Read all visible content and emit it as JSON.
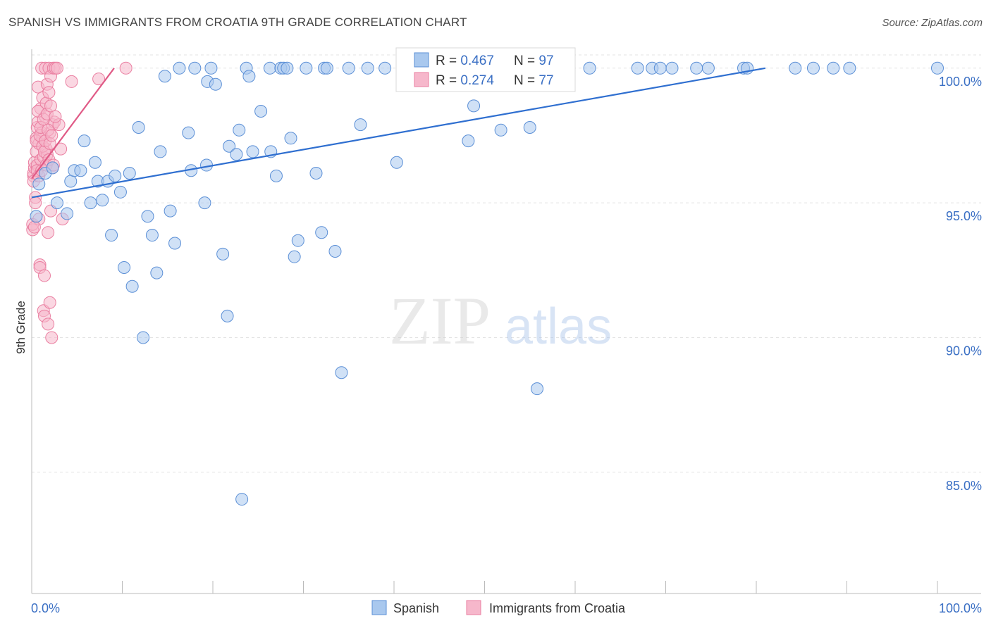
{
  "title": "SPANISH VS IMMIGRANTS FROM CROATIA 9TH GRADE CORRELATION CHART",
  "source": "Source: ZipAtlas.com",
  "watermark": {
    "zip": "ZIP",
    "atlas": "atlas"
  },
  "colors": {
    "spanish_fill": "#a9c8ee",
    "spanish_stroke": "#5b8fd6",
    "spanish_line": "#2f6fd0",
    "croatia_fill": "#f6b7cb",
    "croatia_stroke": "#ea7fa1",
    "croatia_line": "#e05a86",
    "tick_label": "#3a6fc4",
    "grid": "#e3e3e3"
  },
  "legend": {
    "rows": [
      {
        "r_label": "R = ",
        "r_value": "0.467",
        "n_label": "N = ",
        "n_value": "97"
      },
      {
        "r_label": "R = ",
        "r_value": "0.274",
        "n_label": "N = ",
        "n_value": "77"
      }
    ]
  },
  "chart_data": {
    "type": "scatter",
    "title": "SPANISH VS IMMIGRANTS FROM CROATIA 9TH GRADE CORRELATION CHART",
    "xlabel": "",
    "ylabel": "9th Grade",
    "xlim": [
      0,
      100
    ],
    "ylim": [
      80.5,
      100.7
    ],
    "x_tick_labels": [
      "0.0%",
      "100.0%"
    ],
    "y_ticks": [
      85,
      90,
      95,
      100
    ],
    "y_tick_labels": [
      "85.0%",
      "90.0%",
      "95.0%",
      "100.0%"
    ],
    "grid": true,
    "legend_position": "top-center",
    "series": [
      {
        "name": "Spanish",
        "r": 0.467,
        "n": 97,
        "trend": {
          "x": [
            0,
            81
          ],
          "y": [
            95.2,
            100
          ]
        },
        "points": [
          [
            0.5,
            94.5
          ],
          [
            0.8,
            95.7
          ],
          [
            1.5,
            96.1
          ],
          [
            2.3,
            96.3
          ],
          [
            2.8,
            95.0
          ],
          [
            3.9,
            94.6
          ],
          [
            4.3,
            95.8
          ],
          [
            4.7,
            96.2
          ],
          [
            5.4,
            96.2
          ],
          [
            5.8,
            97.3
          ],
          [
            6.5,
            95.0
          ],
          [
            7.0,
            96.5
          ],
          [
            7.3,
            95.8
          ],
          [
            7.8,
            95.1
          ],
          [
            8.4,
            95.8
          ],
          [
            8.8,
            93.8
          ],
          [
            9.2,
            96.0
          ],
          [
            9.8,
            95.4
          ],
          [
            10.2,
            92.6
          ],
          [
            10.8,
            96.1
          ],
          [
            11.1,
            91.9
          ],
          [
            11.8,
            97.8
          ],
          [
            12.3,
            90.0
          ],
          [
            12.8,
            94.5
          ],
          [
            13.3,
            93.8
          ],
          [
            13.8,
            92.4
          ],
          [
            14.2,
            96.9
          ],
          [
            14.7,
            99.7
          ],
          [
            15.3,
            94.7
          ],
          [
            15.8,
            93.5
          ],
          [
            16.3,
            100
          ],
          [
            17.3,
            97.6
          ],
          [
            17.6,
            96.2
          ],
          [
            18.0,
            100
          ],
          [
            19.1,
            95.0
          ],
          [
            19.3,
            96.4
          ],
          [
            19.4,
            99.5
          ],
          [
            19.8,
            100
          ],
          [
            20.3,
            99.4
          ],
          [
            21.1,
            93.1
          ],
          [
            21.6,
            90.8
          ],
          [
            21.8,
            97.1
          ],
          [
            22.6,
            96.8
          ],
          [
            22.9,
            97.7
          ],
          [
            23.2,
            84.0
          ],
          [
            23.7,
            100
          ],
          [
            24.0,
            99.7
          ],
          [
            24.4,
            96.9
          ],
          [
            25.3,
            98.4
          ],
          [
            26.3,
            100
          ],
          [
            26.4,
            96.9
          ],
          [
            27.0,
            96.0
          ],
          [
            27.5,
            100
          ],
          [
            27.8,
            100
          ],
          [
            28.2,
            100
          ],
          [
            28.6,
            97.4
          ],
          [
            29.0,
            93.0
          ],
          [
            29.4,
            93.6
          ],
          [
            30.3,
            100
          ],
          [
            31.4,
            96.1
          ],
          [
            32.0,
            93.9
          ],
          [
            32.3,
            100
          ],
          [
            32.6,
            100
          ],
          [
            33.5,
            93.2
          ],
          [
            34.2,
            88.7
          ],
          [
            35.0,
            100
          ],
          [
            36.3,
            97.9
          ],
          [
            37.1,
            100
          ],
          [
            39.0,
            100
          ],
          [
            40.3,
            96.5
          ],
          [
            41.3,
            100
          ],
          [
            43.4,
            100
          ],
          [
            44.6,
            99.4
          ],
          [
            46.4,
            100
          ],
          [
            48.2,
            97.3
          ],
          [
            48.8,
            98.6
          ],
          [
            49.6,
            100
          ],
          [
            51.3,
            100
          ],
          [
            51.8,
            97.7
          ],
          [
            53.3,
            100
          ],
          [
            55.0,
            97.8
          ],
          [
            55.8,
            88.1
          ],
          [
            56.7,
            100
          ],
          [
            61.6,
            100
          ],
          [
            66.9,
            100
          ],
          [
            68.5,
            100
          ],
          [
            69.4,
            100
          ],
          [
            70.7,
            100
          ],
          [
            73.4,
            100
          ],
          [
            74.7,
            100
          ],
          [
            78.6,
            100
          ],
          [
            79.0,
            100
          ],
          [
            84.3,
            100
          ],
          [
            86.3,
            100
          ],
          [
            88.5,
            100
          ],
          [
            90.3,
            100
          ],
          [
            100,
            100
          ]
        ]
      },
      {
        "name": "Immigrants from Croatia",
        "r": 0.274,
        "n": 77,
        "trend": {
          "x": [
            0,
            9.1
          ],
          "y": [
            95.9,
            100
          ]
        },
        "points": [
          [
            0.1,
            94.0
          ],
          [
            0.1,
            94.2
          ],
          [
            0.2,
            96.0
          ],
          [
            0.2,
            96.1
          ],
          [
            0.3,
            96.3
          ],
          [
            0.3,
            96.5
          ],
          [
            0.4,
            95.2
          ],
          [
            0.4,
            95.0
          ],
          [
            0.5,
            96.9
          ],
          [
            0.5,
            97.4
          ],
          [
            0.6,
            97.8
          ],
          [
            0.6,
            96.4
          ],
          [
            0.7,
            98.0
          ],
          [
            0.7,
            99.3
          ],
          [
            0.8,
            97.2
          ],
          [
            0.8,
            94.4
          ],
          [
            0.9,
            92.7
          ],
          [
            0.9,
            92.6
          ],
          [
            1.0,
            98.5
          ],
          [
            1.0,
            96.6
          ],
          [
            1.1,
            100
          ],
          [
            1.1,
            97.6
          ],
          [
            1.2,
            98.9
          ],
          [
            1.2,
            97.4
          ],
          [
            1.3,
            96.7
          ],
          [
            1.3,
            91.0
          ],
          [
            1.4,
            90.8
          ],
          [
            1.4,
            92.3
          ],
          [
            1.5,
            100
          ],
          [
            1.5,
            98.2
          ],
          [
            1.6,
            98.7
          ],
          [
            1.6,
            97.0
          ],
          [
            1.7,
            99.4
          ],
          [
            1.7,
            96.8
          ],
          [
            1.8,
            90.5
          ],
          [
            1.8,
            93.9
          ],
          [
            1.9,
            99.1
          ],
          [
            1.9,
            100
          ],
          [
            2.0,
            97.6
          ],
          [
            2.0,
            91.3
          ],
          [
            2.1,
            99.7
          ],
          [
            2.1,
            94.7
          ],
          [
            2.2,
            90.0
          ],
          [
            2.3,
            97.9
          ],
          [
            2.3,
            96.3
          ],
          [
            2.4,
            100
          ],
          [
            2.5,
            98.0
          ],
          [
            2.6,
            100
          ],
          [
            2.8,
            100
          ],
          [
            3.0,
            97.9
          ],
          [
            3.2,
            97.0
          ],
          [
            3.4,
            94.4
          ],
          [
            4.4,
            99.5
          ],
          [
            7.4,
            99.6
          ],
          [
            10.4,
            100
          ],
          [
            0.2,
            95.8
          ],
          [
            0.3,
            94.1
          ],
          [
            0.5,
            97.3
          ],
          [
            0.6,
            96.2
          ],
          [
            0.7,
            98.4
          ],
          [
            0.8,
            96.0
          ],
          [
            0.9,
            97.5
          ],
          [
            1.0,
            97.8
          ],
          [
            1.1,
            96.2
          ],
          [
            1.2,
            97.1
          ],
          [
            1.3,
            98.1
          ],
          [
            1.4,
            96.9
          ],
          [
            1.5,
            97.3
          ],
          [
            1.6,
            96.4
          ],
          [
            1.7,
            98.3
          ],
          [
            1.8,
            97.7
          ],
          [
            1.9,
            96.6
          ],
          [
            2.0,
            97.2
          ],
          [
            2.1,
            98.6
          ],
          [
            2.2,
            97.5
          ],
          [
            2.4,
            96.4
          ],
          [
            2.6,
            98.2
          ]
        ]
      }
    ]
  }
}
